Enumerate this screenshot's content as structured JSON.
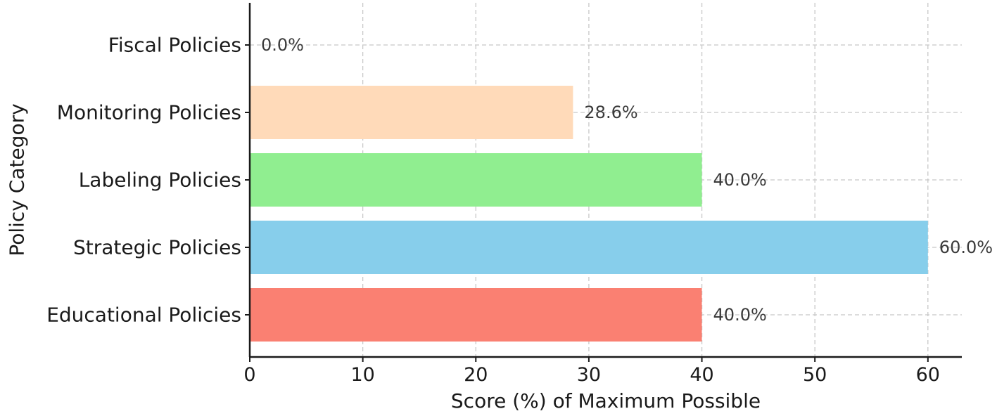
{
  "chart_data": {
    "type": "bar",
    "orientation": "horizontal",
    "title": "",
    "xlabel": "Score (%) of Maximum Possible",
    "ylabel": "Policy Category",
    "xlim": [
      0,
      63
    ],
    "x_ticks": [
      0,
      10,
      20,
      30,
      40,
      50,
      60
    ],
    "x_tick_labels": [
      "0",
      "10",
      "20",
      "30",
      "40",
      "50",
      "60"
    ],
    "grid": true,
    "categories": [
      "Educational Policies",
      "Strategic Policies",
      "Labeling Policies",
      "Monitoring Policies",
      "Fiscal Policies"
    ],
    "values": [
      40.0,
      60.0,
      40.0,
      28.6,
      0.0
    ],
    "value_labels": [
      "40.0%",
      "60.0%",
      "40.0%",
      "28.6%",
      "0.0%"
    ],
    "colors": [
      "#fa8072",
      "#87ceeb",
      "#90ee90",
      "#ffdab9",
      "#e6e6fa"
    ]
  }
}
